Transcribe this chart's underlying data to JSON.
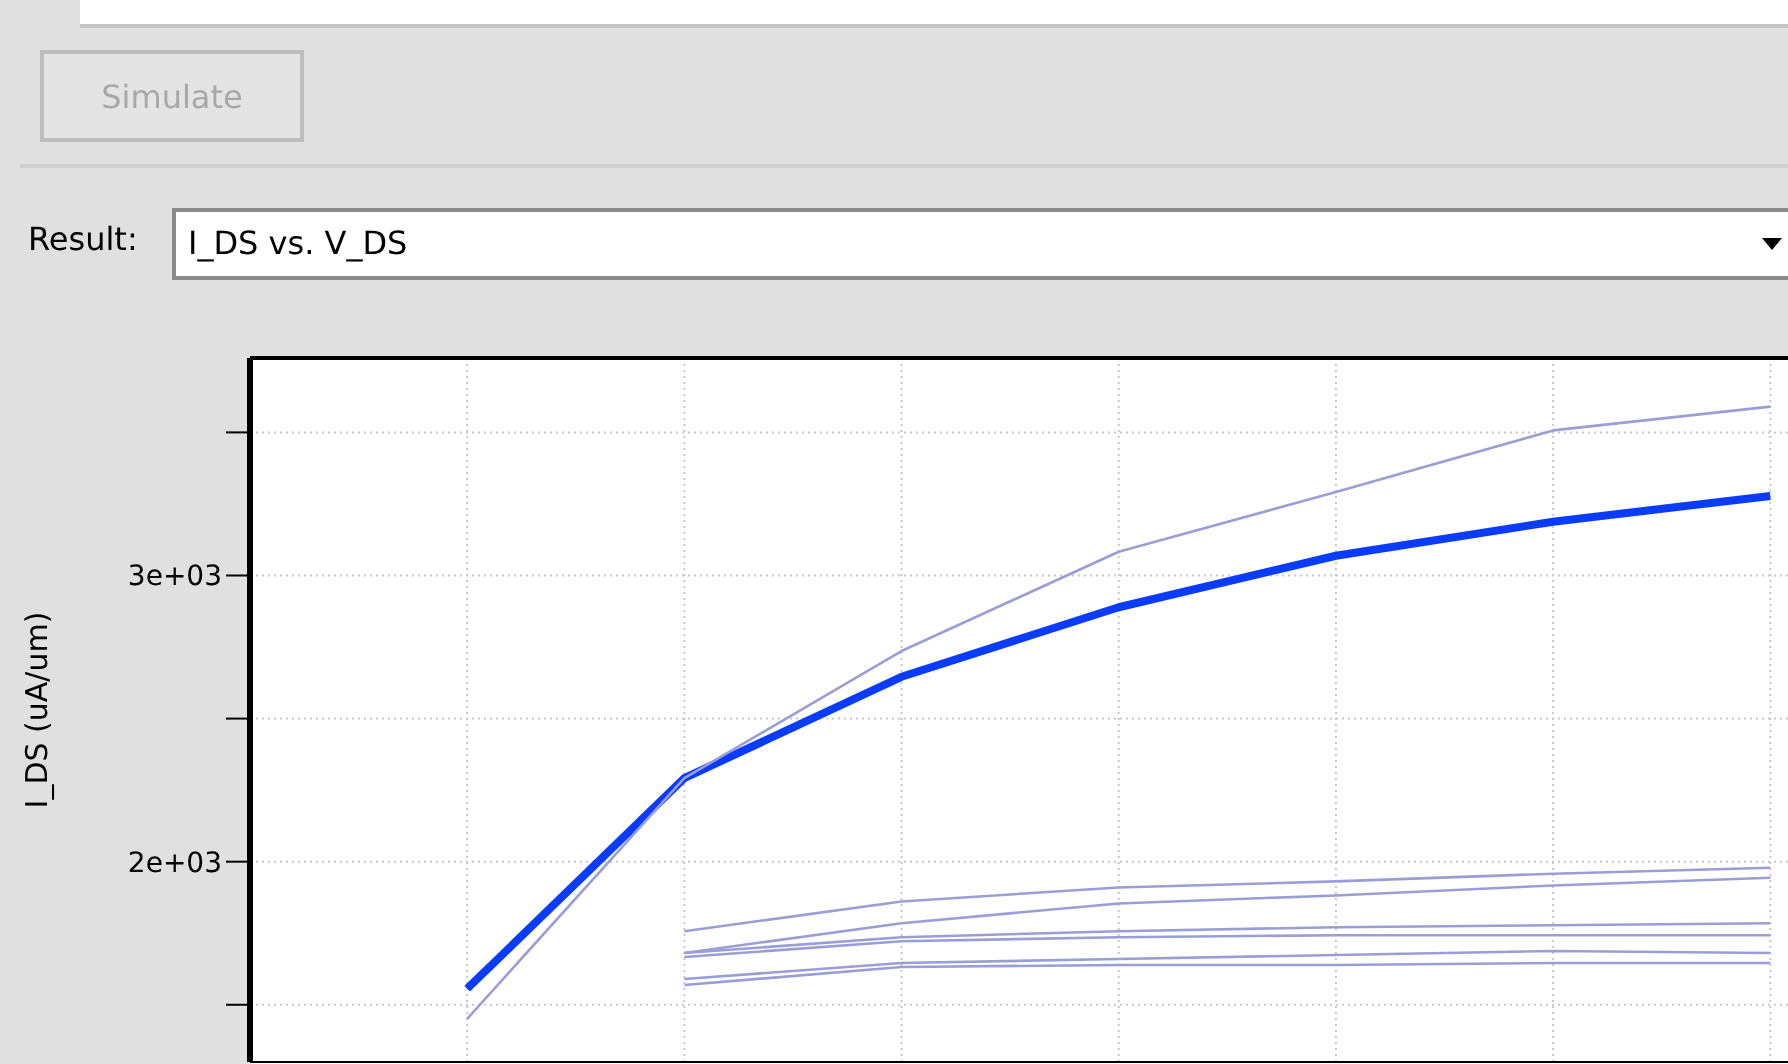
{
  "chart_data": {
    "type": "line",
    "title": "I_DS vs. V_DS",
    "ylabel": "I_DS (uA/um)",
    "annotations": [
      "Simulate",
      "Result:"
    ],
    "categories": [
      null,
      null,
      null,
      null,
      null,
      null,
      null,
      null
    ],
    "ylim": [
      1300,
      3760
    ],
    "yticks": [
      {
        "value": 1500,
        "label": null
      },
      {
        "value": 2000,
        "label": "2e+03"
      },
      {
        "value": 2500,
        "label": null
      },
      {
        "value": 3000,
        "label": "3e+03"
      },
      {
        "value": 3500,
        "label": null
      }
    ],
    "tick_labels": "y",
    "grid": true,
    "legend": false,
    "marker": "none",
    "line_style": "solid",
    "series": [
      {
        "color": "#0a3cff",
        "values": [
          null,
          1556,
          2292,
          2646,
          2889,
          3069,
          3188,
          3278
        ]
      },
      {
        "color": "#9a9ed6",
        "values": [
          null,
          1451,
          2292,
          2736,
          3083,
          3292,
          3507,
          3590
        ]
      },
      {
        "color": "#9a9ed6",
        "values": [
          null,
          null,
          1757,
          1861,
          1910,
          1931,
          1958,
          1979
        ]
      },
      {
        "color": "#9a9ed6",
        "values": [
          null,
          null,
          1681,
          1785,
          1854,
          1882,
          1917,
          1944
        ]
      },
      {
        "color": "#9a9ed6",
        "values": [
          null,
          null,
          1681,
          1736,
          1757,
          1771,
          1778,
          1785
        ]
      },
      {
        "color": "#9a9ed6",
        "values": [
          null,
          null,
          1667,
          1722,
          1736,
          1743,
          1743,
          1743
        ]
      },
      {
        "color": "#9a9ed6",
        "values": [
          null,
          null,
          1590,
          1646,
          1660,
          1674,
          1688,
          1681
        ]
      },
      {
        "color": "#9a9ed6",
        "values": [
          null,
          null,
          1569,
          1632,
          1639,
          1639,
          1646,
          1646
        ]
      }
    ]
  }
}
